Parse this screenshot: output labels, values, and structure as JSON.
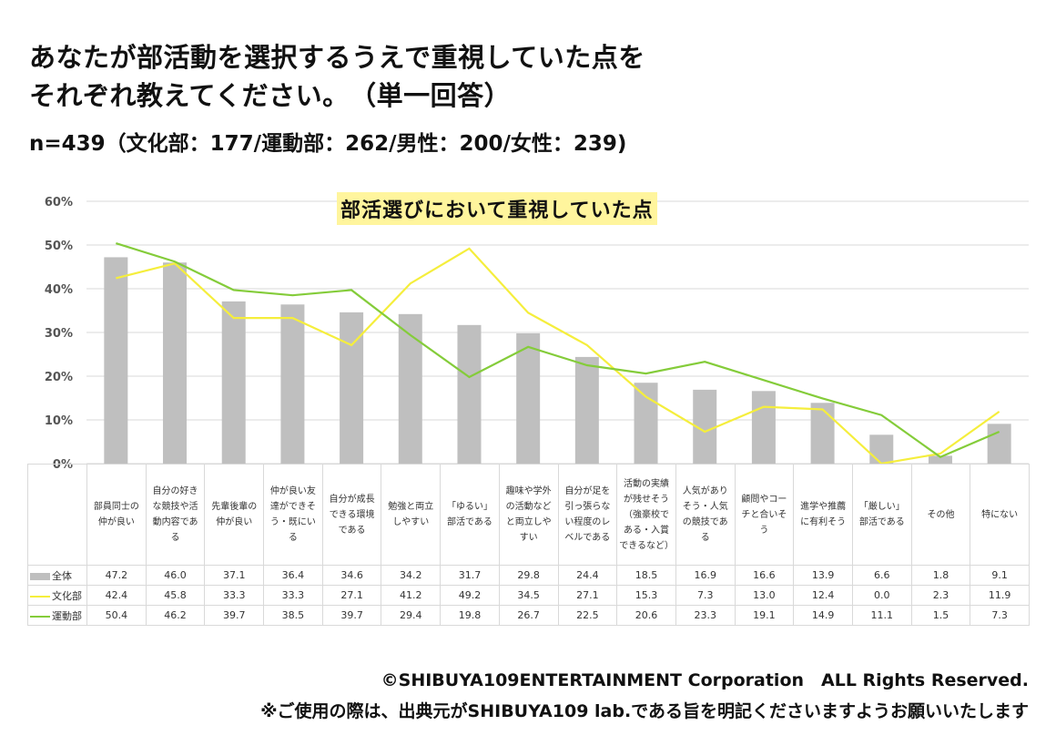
{
  "title_line1": "あなたが部活動を選択するうえで重視していた点を",
  "title_line2": "それぞれ教えてください。　（単一回答）",
  "subtitle": "n=439（文化部：177/運動部：262/男性：200/女性：239)",
  "footer_copyright": "©SHIBUYA109ENTERTAINMENT Corporation　ALL Rights Reserved.",
  "footer_note": "※ご使用の際は、出典元がSHIBUYA109 lab.である旨を明記くださいますようお願いいたします",
  "chart_data": {
    "type": "bar",
    "title": "部活選びにおいて重視していた点",
    "ylim": [
      0,
      60
    ],
    "yticks": [
      "0%",
      "10%",
      "20%",
      "30%",
      "40%",
      "50%",
      "60%"
    ],
    "categories": [
      "部員同士の仲が良い",
      "自分の好きな競技や活動内容である",
      "先輩後輩の仲が良い",
      "仲が良い友達ができそう・既にいる",
      "自分が成長できる環境である",
      "勉強と両立しやすい",
      "「ゆるい」部活である",
      "趣味や学外の活動などと両立しやすい",
      "自分が足を引っ張らない程度のレベルである",
      "活動の実績が残せそう（強豪校である・入賞できるなど）",
      "人気がありそう・人気の競技である",
      "顧問やコーチと合いそう",
      "進学や推薦に有利そう",
      "「厳しい」部活である",
      "その他",
      "特にない"
    ],
    "series": [
      {
        "name": "全体",
        "type": "bar",
        "color": "#bfbfbf",
        "values": [
          47.2,
          46.0,
          37.1,
          36.4,
          34.6,
          34.2,
          31.7,
          29.8,
          24.4,
          18.5,
          16.9,
          16.6,
          13.9,
          6.6,
          1.8,
          9.1
        ]
      },
      {
        "name": "文化部",
        "type": "line",
        "color": "#f5ee3c",
        "values": [
          42.4,
          45.8,
          33.3,
          33.3,
          27.1,
          41.2,
          49.2,
          34.5,
          27.1,
          15.3,
          7.3,
          13.0,
          12.4,
          0.0,
          2.3,
          11.9
        ]
      },
      {
        "name": "運動部",
        "type": "line",
        "color": "#84cc3a",
        "values": [
          50.4,
          46.2,
          39.7,
          38.5,
          39.7,
          29.4,
          19.8,
          26.7,
          22.5,
          20.6,
          23.3,
          19.1,
          14.9,
          11.1,
          1.5,
          7.3
        ]
      }
    ]
  }
}
